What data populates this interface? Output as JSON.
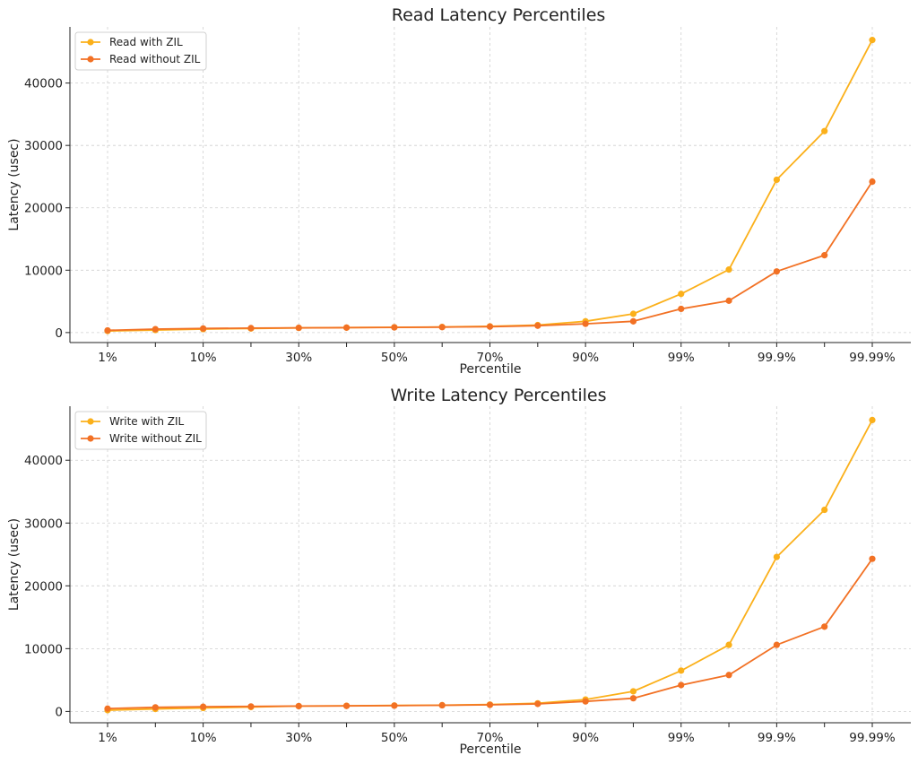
{
  "chart_data": [
    {
      "type": "line",
      "title": "Read Latency Percentiles",
      "xlabel": "Percentile",
      "ylabel": "Latency (usec)",
      "x_tick_labels": [
        "1%",
        "10%",
        "30%",
        "50%",
        "70%",
        "90%",
        "99%",
        "99.9%",
        "99.99%"
      ],
      "ylim": [
        -1600,
        49000
      ],
      "yticks": [
        0,
        10000,
        20000,
        30000,
        40000
      ],
      "grid": true,
      "legend_position": "top-left",
      "series": [
        {
          "name": "Read with ZIL",
          "color": "#fbb01a",
          "values": [
            250,
            400,
            550,
            650,
            750,
            800,
            850,
            900,
            1000,
            1200,
            1800,
            3000,
            6200,
            10100,
            24500,
            32300,
            46900
          ]
        },
        {
          "name": "Read without ZIL",
          "color": "#f27124",
          "values": [
            350,
            550,
            650,
            720,
            760,
            790,
            830,
            870,
            950,
            1100,
            1400,
            1800,
            3800,
            5100,
            9800,
            12400,
            24200
          ]
        }
      ]
    },
    {
      "type": "line",
      "title": "Write Latency Percentiles",
      "xlabel": "Percentile",
      "ylabel": "Latency (usec)",
      "x_tick_labels": [
        "1%",
        "10%",
        "30%",
        "50%",
        "70%",
        "90%",
        "99%",
        "99.9%",
        "99.99%"
      ],
      "ylim": [
        -1800,
        48600
      ],
      "yticks": [
        0,
        10000,
        20000,
        30000,
        40000
      ],
      "grid": true,
      "legend_position": "top-left",
      "series": [
        {
          "name": "Write with ZIL",
          "color": "#fbb01a",
          "values": [
            200,
            400,
            550,
            700,
            850,
            900,
            950,
            1000,
            1100,
            1300,
            1900,
            3200,
            6500,
            10600,
            24600,
            32100,
            46400
          ]
        },
        {
          "name": "Write without ZIL",
          "color": "#f27124",
          "values": [
            450,
            650,
            750,
            800,
            850,
            880,
            920,
            980,
            1050,
            1200,
            1600,
            2100,
            4200,
            5800,
            10600,
            13500,
            24300
          ]
        }
      ]
    }
  ]
}
